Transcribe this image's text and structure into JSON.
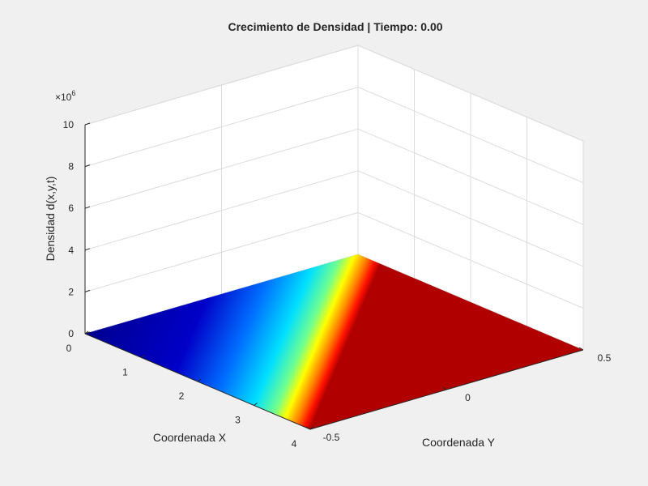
{
  "chart_data": {
    "type": "surface",
    "title": "Crecimiento de Densidad | Tiempo: 0.00",
    "xlabel": "Coordenada X",
    "ylabel": "Coordenada Y",
    "zlabel": "Densidad d(x,y,t)",
    "z_exponent_label": "×10",
    "z_exponent": "6",
    "xlim": [
      0,
      4
    ],
    "ylim": [
      -0.5,
      0.5
    ],
    "zlim": [
      0,
      10000000
    ],
    "x_ticks": [
      "0",
      "1",
      "2",
      "3",
      "4"
    ],
    "y_ticks": [
      "-0.5",
      "0",
      "0.5"
    ],
    "z_ticks": [
      "0",
      "2",
      "4",
      "6",
      "8",
      "10"
    ],
    "grid": true,
    "colormap": "jet",
    "surface_z_approx": 0,
    "color_gradient": {
      "description_axis": "x",
      "stops": [
        {
          "x": 0.0,
          "color": "#00008f"
        },
        {
          "x": 1.6,
          "color": "#0000c8"
        },
        {
          "x": 2.4,
          "color": "#0070ff"
        },
        {
          "x": 3.0,
          "color": "#00e0ff"
        },
        {
          "x": 3.35,
          "color": "#70ff8f"
        },
        {
          "x": 3.55,
          "color": "#ffff00"
        },
        {
          "x": 3.75,
          "color": "#ff8000"
        },
        {
          "x": 3.9,
          "color": "#ff1000"
        },
        {
          "x": 4.0,
          "color": "#b00000"
        }
      ]
    }
  },
  "colors": {
    "background": "#f0f0f0",
    "axes_pane": "#ffffff",
    "grid": "#dcdcdc",
    "axis_line": "#262626"
  }
}
